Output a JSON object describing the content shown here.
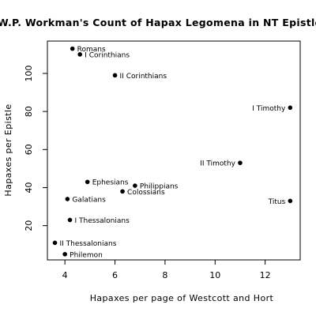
{
  "chart_data": {
    "type": "scatter",
    "title": "W.P. Workman's Count of Hapax Legomena in NT Epistles",
    "xlabel": "Hapaxes per page of Westcott and Hort",
    "ylabel": "Hapaxes per Epistle",
    "xlim": [
      3.3,
      13.4
    ],
    "ylim": [
      2,
      117
    ],
    "xticks": [
      4,
      6,
      8,
      10,
      12
    ],
    "yticks": [
      20,
      40,
      60,
      80,
      100
    ],
    "grid": false,
    "point_color": "#000000",
    "points": [
      {
        "label": "Romans",
        "x": 4.3,
        "y": 113,
        "label_side": "right"
      },
      {
        "label": "I Corinthians",
        "x": 4.6,
        "y": 110,
        "label_side": "right"
      },
      {
        "label": "II Corinthians",
        "x": 6.0,
        "y": 99,
        "label_side": "right"
      },
      {
        "label": "I Timothy",
        "x": 13.0,
        "y": 82,
        "label_side": "left"
      },
      {
        "label": "II Timothy",
        "x": 11.0,
        "y": 53,
        "label_side": "left"
      },
      {
        "label": "Ephesians",
        "x": 4.9,
        "y": 43,
        "label_side": "right"
      },
      {
        "label": "Philippians",
        "x": 6.8,
        "y": 41,
        "label_side": "right"
      },
      {
        "label": "Colossians",
        "x": 6.3,
        "y": 38,
        "label_side": "right"
      },
      {
        "label": "Galatians",
        "x": 4.1,
        "y": 34,
        "label_side": "right"
      },
      {
        "label": "Titus",
        "x": 13.0,
        "y": 33,
        "label_side": "left"
      },
      {
        "label": "I Thessalonians",
        "x": 4.2,
        "y": 23,
        "label_side": "right"
      },
      {
        "label": "II Thessalonians",
        "x": 3.6,
        "y": 11,
        "label_side": "right"
      },
      {
        "label": "Philemon",
        "x": 4.0,
        "y": 5,
        "label_side": "right"
      }
    ]
  }
}
